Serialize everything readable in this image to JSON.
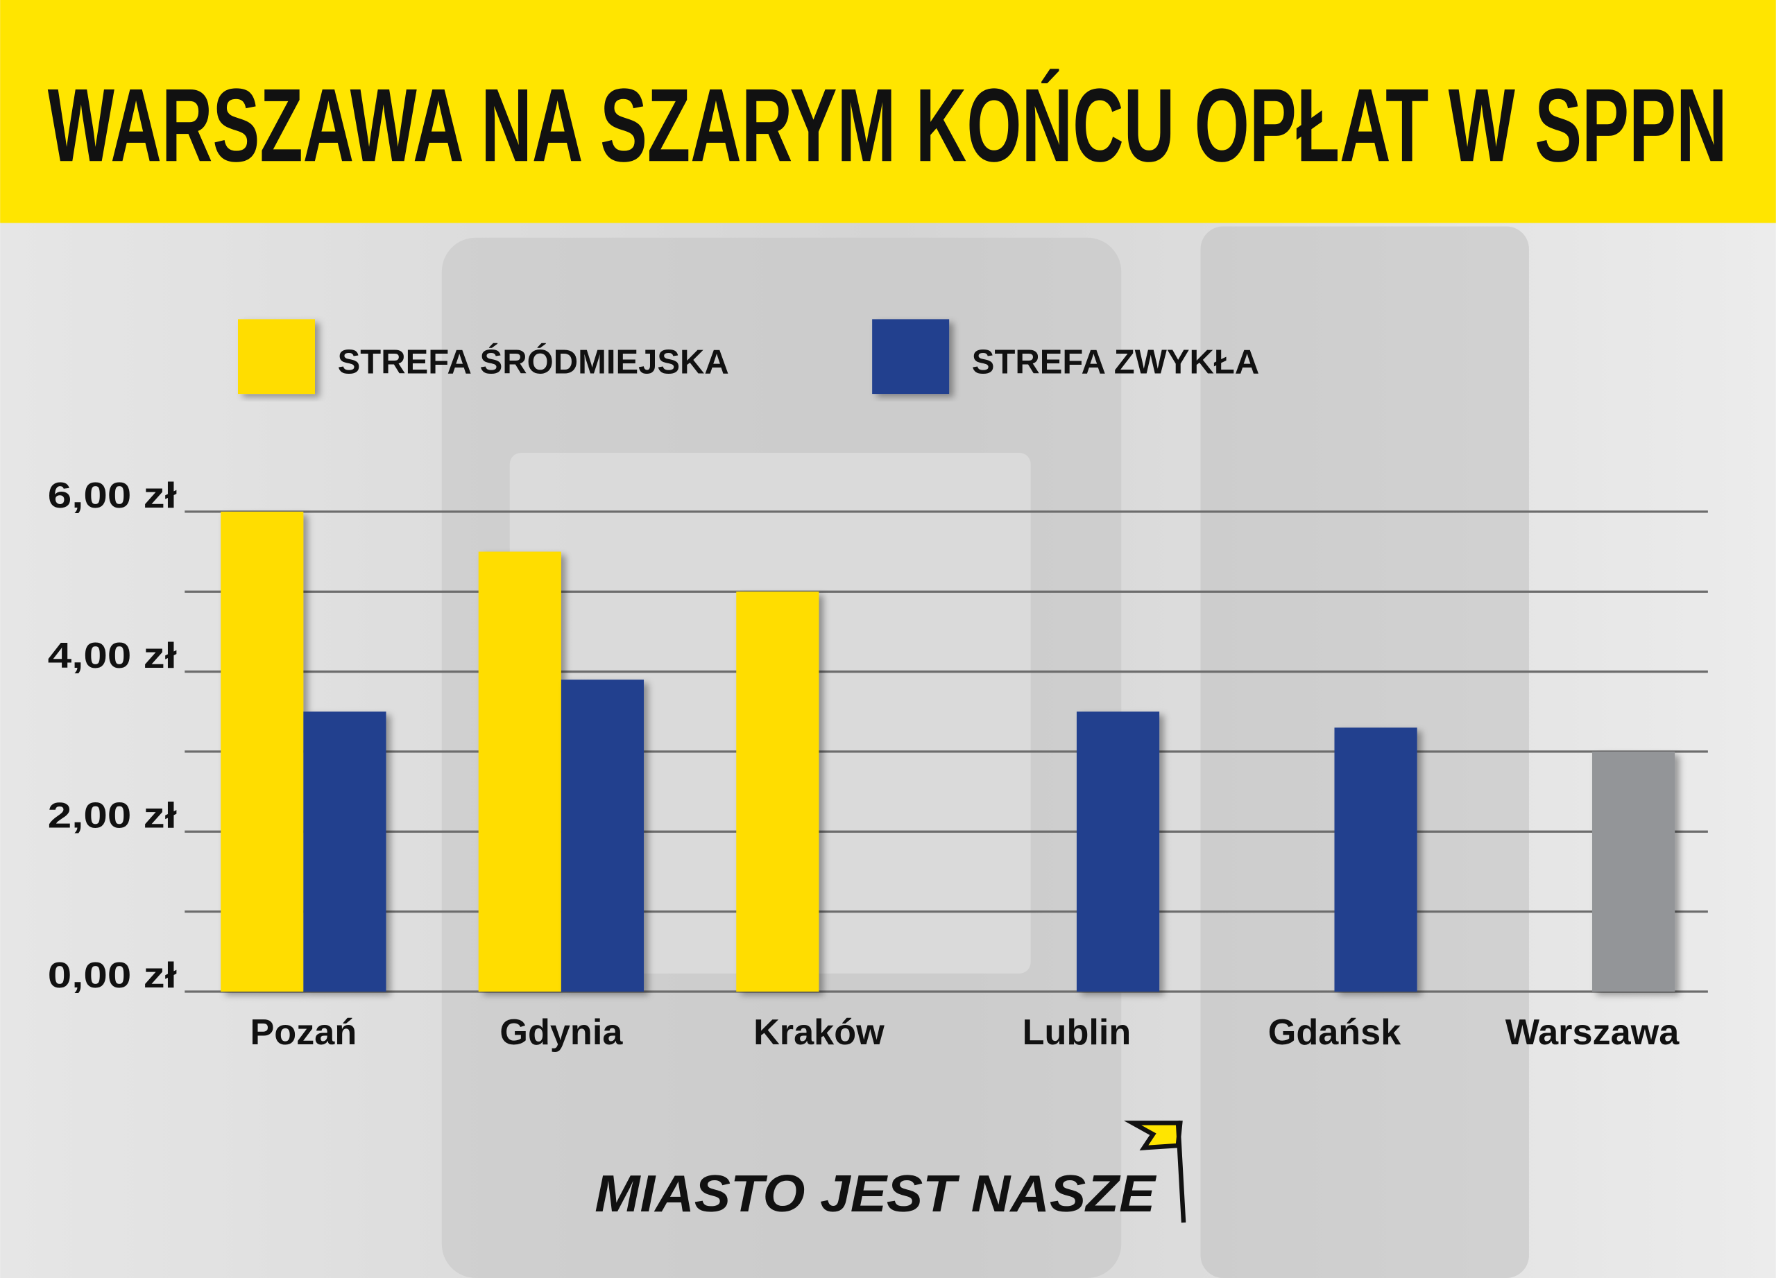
{
  "chart_data": {
    "type": "bar",
    "title": "WARSZAWA NA SZARYM KOŃCU OPŁAT W SPPN",
    "categories": [
      "Pozań",
      "Gdynia",
      "Kraków",
      "Lublin",
      "Gdańsk",
      "Warszawa"
    ],
    "series": [
      {
        "name": "STREFA ŚRÓDMIEJSKA",
        "color": "#ffdd00",
        "values": [
          6.0,
          5.5,
          5.0,
          null,
          null,
          null
        ]
      },
      {
        "name": "STREFA ZWYKŁA",
        "color": "#24408e",
        "values": [
          3.5,
          3.9,
          null,
          3.5,
          3.3,
          3.0
        ],
        "colors": [
          "#24408e",
          "#24408e",
          "#24408e",
          "#24408e",
          "#24408e",
          "#939598"
        ]
      }
    ],
    "ylim": [
      0,
      6
    ],
    "yticks": [
      {
        "value": 0,
        "label": "0,00 zł"
      },
      {
        "value": 2,
        "label": "2,00 zł"
      },
      {
        "value": 4,
        "label": "4,00 zł"
      },
      {
        "value": 6,
        "label": "6,00 zł"
      }
    ],
    "minor_yticks": [
      1,
      3,
      5
    ],
    "grid": true,
    "logo": "MIASTO JEST NASZE"
  }
}
